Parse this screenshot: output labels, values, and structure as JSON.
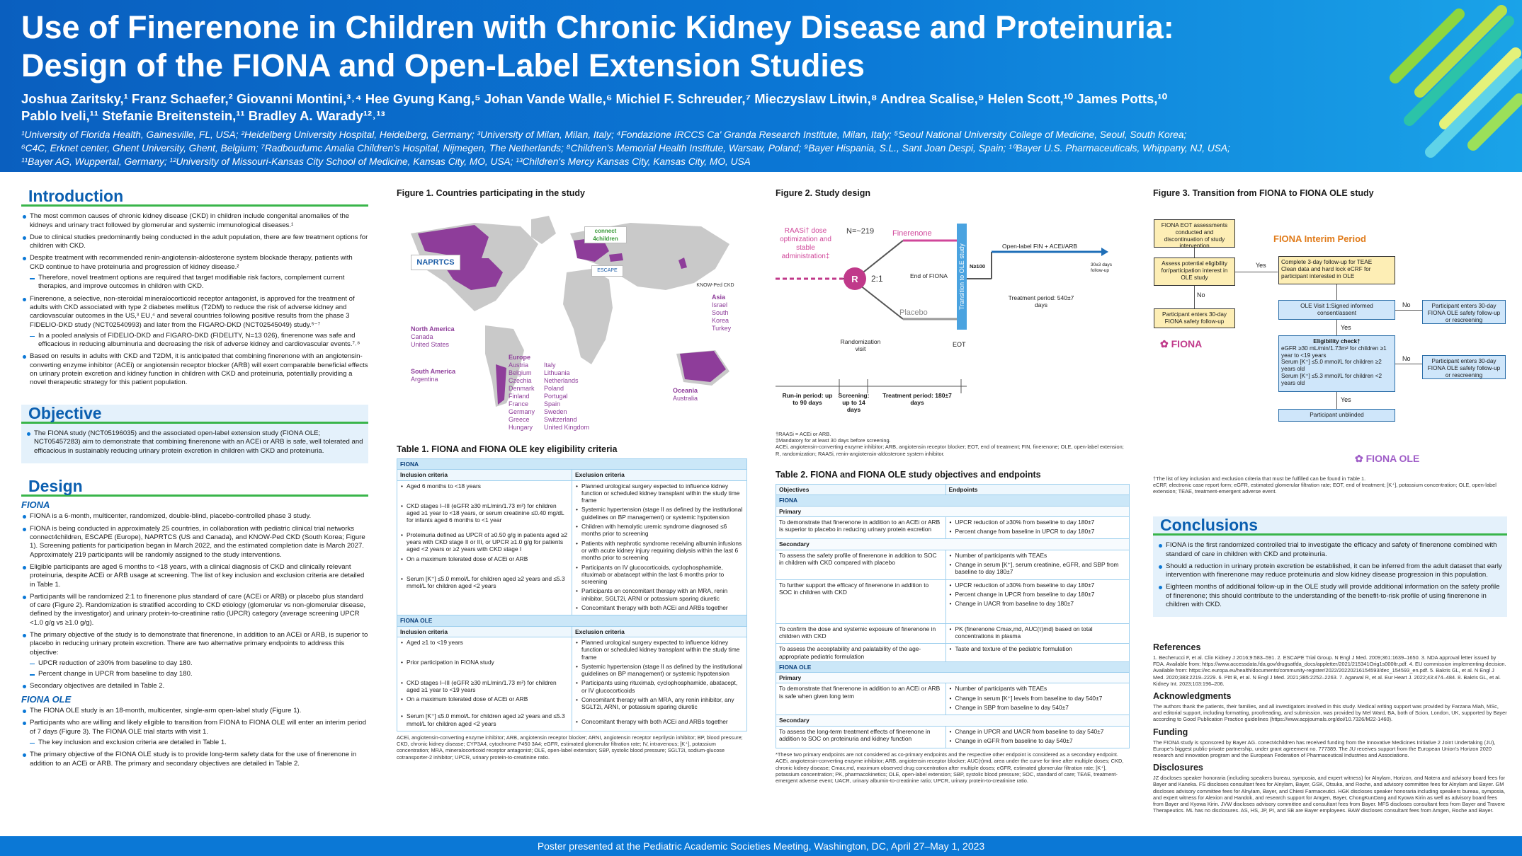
{
  "header": {
    "title_line1": "Use of Finerenone in Children with Chronic Kidney Disease and Proteinuria:",
    "title_line2": "Design of the FIONA and Open-Label Extension Studies",
    "authors_line1": "Joshua Zaritsky,¹ Franz Schaefer,² Giovanni Montini,³˒⁴ Hee Gyung Kang,⁵ Johan Vande Walle,⁶ Michiel F. Schreuder,⁷ Mieczyslaw Litwin,⁸ Andrea Scalise,⁹ Helen Scott,¹⁰ James Potts,¹⁰",
    "authors_line2": "Pablo Iveli,¹¹ Stefanie Breitenstein,¹¹ Bradley A. Warady¹²˒¹³",
    "affil_line1": "¹University of Florida Health, Gainesville, FL, USA; ²Heidelberg University Hospital, Heidelberg, Germany; ³University of Milan, Milan, Italy; ⁴Fondazione IRCCS Ca' Granda Research Institute, Milan, Italy; ⁵Seoul National University College of Medicine, Seoul, South Korea;",
    "affil_line2": "⁶C4C, Erknet center, Ghent University, Ghent, Belgium; ⁷Radboudumc Amalia Children's Hospital, Nijmegen, The Netherlands; ⁸Children's Memorial Health Institute, Warsaw, Poland; ⁹Bayer Hispania, S.L., Sant Joan Despi, Spain; ¹⁰Bayer U.S. Pharmaceuticals, Whippany, NJ, USA;",
    "affil_line3": "¹¹Bayer AG, Wuppertal, Germany; ¹²University of Missouri-Kansas City School of Medicine, Kansas City, MO, USA; ¹³Children's Mercy Kansas City, Kansas City, MO, USA"
  },
  "intro": {
    "heading": "Introduction",
    "b1": "The most common causes of chronic kidney disease (CKD) in children include congenital anomalies of the kidneys and urinary tract followed by glomerular and systemic immunological diseases.¹",
    "b2": "Due to clinical studies predominantly being conducted in the adult population, there are few treatment options for children with CKD.",
    "b3": "Despite treatment with recommended renin-angiotensin-aldosterone system blockade therapy, patients with CKD continue to have proteinuria and progression of kidney disease.²",
    "b3s": "Therefore, novel treatment options are required that target modifiable risk factors, complement current therapies, and improve outcomes in children with CKD.",
    "b4": "Finerenone, a selective, non-steroidal mineralocorticoid receptor antagonist, is approved for the treatment of adults with CKD associated with type 2 diabetes mellitus (T2DM) to reduce the risk of adverse kidney and cardiovascular outcomes in the US,³ EU,⁴ and several countries following positive results from the phase 3 FIDELIO-DKD study (NCT02540993) and later from the FIGARO-DKD (NCT02545049) study.⁵⁻⁷",
    "b4s": "In a pooled analysis of FIDELIO-DKD and FIGARO-DKD (FIDELITY, N=13 026), finerenone was safe and efficacious in reducing albuminuria and decreasing the risk of adverse kidney and cardiovascular events.⁷˒⁸",
    "b5": "Based on results in adults with CKD and T2DM, it is anticipated that combining finerenone with an angiotensin-converting enzyme inhibitor (ACEi) or angiotensin receptor blocker (ARB) will exert comparable beneficial effects on urinary protein excretion and kidney function in children with CKD and proteinuria, potentially providing a novel therapeutic strategy for this patient population."
  },
  "objective": {
    "heading": "Objective",
    "b1": "The FIONA study (NCT05196035) and the associated open-label extension study (FIONA OLE; NCT05457283) aim to demonstrate that combining finerenone with an ACEi or ARB is safe, well tolerated and efficacious in sustainably reducing urinary protein excretion in children with CKD and proteinuria."
  },
  "design": {
    "heading": "Design",
    "fiona_sub": "FIONA",
    "f1": "FIONA is a 6-month, multicenter, randomized, double-blind, placebo-controlled phase 3 study.",
    "f2": "FIONA is being conducted in approximately 25 countries, in collaboration with pediatric clinical trial networks connect4children, ESCAPE (Europe), NAPRTCS (US and Canada), and KNOW-Ped CKD (South Korea; Figure 1). Screening patients for participation began in March 2022, and the estimated completion date is March 2027. Approximately 219 participants will be randomly assigned to the study interventions.",
    "f3": "Eligible participants are aged 6 months to <18 years, with a clinical diagnosis of CKD and clinically relevant proteinuria, despite ACEi or ARB usage at screening. The list of key inclusion and exclusion criteria are detailed in Table 1.",
    "f4": "Participants will be randomized 2:1 to finerenone plus standard of care (ACEi or ARB) or placebo plus standard of care (Figure 2). Randomization is stratified according to CKD etiology (glomerular vs non-glomerular disease, defined by the investigator) and urinary protein-to-creatinine ratio (UPCR) category (average screening UPCR <1.0 g/g vs ≥1.0 g/g).",
    "f5": "The primary objective of the study is to demonstrate that finerenone, in addition to an ACEi or ARB, is superior to placebo in reducing urinary protein excretion. There are two alternative primary endpoints to address this objective:",
    "f5a": "UPCR reduction of ≥30% from baseline to day 180.",
    "f5b": "Percent change in UPCR from baseline to day 180.",
    "f6": "Secondary objectives are detailed in Table 2.",
    "ole_sub": "FIONA OLE",
    "o1": "The FIONA OLE study is an 18-month, multicenter, single-arm open-label study (Figure 1).",
    "o2": "Participants who are willing and likely eligible to transition from FIONA to FIONA OLE will enter an interim period of 7 days (Figure 3). The FIONA OLE trial starts with visit 1.",
    "o2s": "The key inclusion and exclusion criteria are detailed in Table 1.",
    "o3": "The primary objective of the FIONA OLE study is to provide long-term safety data for the use of finerenone in addition to an ACEi or ARB. The primary and secondary objectives are detailed in Table 2."
  },
  "fig1": {
    "caption": "Figure 1. Countries participating in the study",
    "na_title": "North America",
    "na": "Canada\nUnited States",
    "sa_title": "South America",
    "sa": "Argentina",
    "eu_title": "Europe",
    "eu1": "Austria\nBelgium\nCzechia\nDenmark\nFinland\nFrance\nGermany\nGreece\nHungary",
    "eu2": "Italy\nLithuania\nNetherlands\nPoland\nPortugal\nSpain\nSweden\nSwitzerland\nUnited Kingdom",
    "as_title": "Asia",
    "as": "Israel\nSouth Korea\nTurkey",
    "oc_title": "Oceania",
    "oc": "Australia",
    "logo_naprtcs": "NAPRTCS",
    "logo_c4c": "connect 4children",
    "logo_escape": "ESCAPE",
    "logo_know": "KNOW-Ped CKD"
  },
  "table1": {
    "caption": "Table 1. FIONA and FIONA OLE key eligibility criteria",
    "fiona": "FIONA",
    "inc": "Inclusion criteria",
    "exc": "Exclusion criteria",
    "fi1": "Aged 6 months to <18 years",
    "fi2": "CKD stages I–III (eGFR ≥30 mL/min/1.73 m²) for children aged ≥1 year to <18 years, or serum creatinine ≤0.40 mg/dL for infants aged 6 months to <1 year",
    "fi3": "Proteinuria defined as UPCR of ≥0.50 g/g in patients aged ≥2 years with CKD stage II or III, or UPCR ≥1.0 g/g for patients aged <2 years or ≥2 years with CKD stage I",
    "fi4": "On a maximum tolerated dose of ACEi or ARB",
    "fi5": "Serum [K⁺] ≤5.0 mmol/L for children aged ≥2 years and ≤5.3 mmol/L for children aged <2 years",
    "fe1": "Planned urological surgery expected to influence kidney function or scheduled kidney transplant within the study time frame",
    "fe2": "Systemic hypertension (stage II as defined by the institutional guidelines on BP management) or systemic hypotension",
    "fe3": "Children with hemolytic uremic syndrome diagnosed ≤6 months prior to screening",
    "fe4": "Patients with nephrotic syndrome receiving albumin infusions or with acute kidney injury requiring dialysis within the last 6 months prior to screening",
    "fe5": "Participants on IV glucocorticoids, cyclophosphamide, rituximab or abatacept within the last 6 months prior to screening",
    "fe6": "Participants on concomitant therapy with an MRA, renin inhibitor, SGLT2i, ARNI or potassium sparing diuretic",
    "fe7": "Concomitant therapy with both ACEi and ARBs together",
    "ole": "FIONA OLE",
    "oi1": "Aged ≥1 to <19 years",
    "oi2": "Prior participation in FIONA study",
    "oi3": "CKD stages I–III (eGFR ≥30 mL/min/1.73 m²) for children aged ≥1 year to <19 years",
    "oi4": "On a maximum tolerated dose of ACEi or ARB",
    "oi5": "Serum [K⁺] ≤5.0 mmol/L for children aged ≥2 years and ≤5.3 mmol/L for children aged <2 years",
    "oe1": "Planned urological surgery expected to influence kidney function or scheduled kidney transplant within the study time frame",
    "oe2": "Systemic hypertension (stage II as defined by the institutional guidelines on BP management) or systemic hypotension",
    "oe3": "Participants using rituximab, cyclophosphamide, abatacept, or IV glucocorticoids",
    "oe4": "Concomitant therapy with an MRA, any renin inhibitor, any SGLT2i, ARNI, or potassium sparing diuretic",
    "oe5": "Concomitant therapy with both ACEi and ARBs together",
    "foot": "ACEi, angiotensin-converting enzyme inhibitor; ARB, angiotensin receptor blocker; ARNI, angiotensin receptor neprilysin inhibitor; BP, blood pressure; CKD, chronic kidney disease; CYP3A4, cytochrome P450 3A4; eGFR, estimated glomerular filtration rate; IV, intravenous; [K⁺], potassium concentration; MRA, mineralocorticoid receptor antagonist; OLE, open-label extension; SBP, systolic blood pressure; SGLT2i, sodium-glucose cotransporter-2 inhibitor; UPCR, urinary protein-to-creatinine ratio."
  },
  "fig2": {
    "caption": "Figure 2. Study design",
    "runin": "RAASi† dose optimization and stable administration‡",
    "n": "N=~219",
    "R": "R",
    "ratio": "2:1",
    "fin": "Finerenone",
    "pla": "Placebo",
    "eof": "End of FIONA",
    "trans": "Transition to OLE study",
    "n100": "N≥100",
    "olelbl": "Open-label FIN + ACEi/ARB",
    "followup": "30±3 days follow-up",
    "tp_ole": "Treatment period: 540±7 days",
    "randvisit": "Randomization visit",
    "eot": "EOT",
    "p1": "Run-in period: up to 90 days",
    "p2": "Screening: up to 14 days",
    "p3": "Treatment period: 180±7 days",
    "foot1": "†RAASi = ACEi or ARB.",
    "foot2": "‡Mandatory for at least 30 days before screening.",
    "foot3": "ACEi, angiotensin-converting enzyme inhibitor; ARB, angiotensin receptor blocker; EOT, end of treatment; FIN, finerenone; OLE, open-label extension; R, randomization; RAASi, renin-angiotensin-aldosterone system inhibitor."
  },
  "table2": {
    "caption": "Table 2. FIONA and FIONA OLE study objectives and endpoints",
    "obj": "Objectives",
    "end": "Endpoints",
    "fiona": "FIONA",
    "primary": "Primary",
    "secondary": "Secondary",
    "ole": "FIONA OLE",
    "p1o": "To demonstrate that finerenone in addition to an ACEi or ARB is superior to placebo in reducing urinary protein excretion",
    "p1e1": "UPCR reduction of ≥30% from baseline to day 180±7",
    "p1e2": "Percent change from baseline in UPCR to day 180±7",
    "s1o": "To assess the safety profile of finerenone in addition to SOC in children with CKD compared with placebo",
    "s1e1": "Number of participants with TEAEs",
    "s1e2": "Change in serum [K⁺], serum creatinine, eGFR, and SBP from baseline to day 180±7",
    "s2o": "To further support the efficacy of finerenone in addition to SOC in children with CKD",
    "s2e1": "UPCR reduction of ≥30% from baseline to day 180±7",
    "s2e2": "Percent change in UPCR from baseline to day 180±7",
    "s2e3": "Change in UACR from baseline to day 180±7",
    "s3o": "To confirm the dose and systemic exposure of finerenone in children with CKD",
    "s3e1": "PK (finerenone Cmax,md, AUC(τ)md) based on total concentrations in plasma",
    "s4o": "To assess the acceptability and palatability of the age-appropriate pediatric formulation",
    "s4e1": "Taste and texture of the pediatric formulation",
    "op1o": "To demonstrate that finerenone in addition to an ACEi or ARB is safe when given long term",
    "op1e1": "Number of participants with TEAEs",
    "op1e2": "Change in serum [K⁺] levels from baseline to day 540±7",
    "op1e3": "Change in SBP from baseline to day 540±7",
    "os1o": "To assess the long-term treatment effects of finerenone in addition to SOC on proteinuria and kidney function",
    "os1e1": "Change in UPCR and UACR from baseline to day 540±7",
    "os1e2": "Change in eGFR from baseline to day 540±7",
    "foot": "*These two primary endpoints are not considered as co-primary endpoints and the respective other endpoint is considered as a secondary endpoint. ACEi, angiotensin-converting enzyme inhibitor; ARB, angiotensin receptor blocker; AUC(τ)md, area under the curve for time after multiple doses; CKD, chronic kidney disease; Cmax,md, maximum observed drug concentration after multiple doses; eGFR, estimated glomerular filtration rate; [K⁺], potassium concentration; PK, pharmacokinetics; OLE, open-label extension; SBP, systolic blood pressure; SOC, standard of care; TEAE, treatment-emergent adverse event; UACR, urinary albumin-to-creatinine ratio; UPCR, urinary protein-to-creatinine ratio."
  },
  "fig3": {
    "caption": "Figure 3. Transition from FIONA to FIONA OLE study",
    "eot": "FIONA EOT assessments conducted and discontinuation of study intervention",
    "assess": "Assess potential eligibility for/participation interest in OLE study",
    "yes": "Yes",
    "no": "No",
    "interim": "FIONA Interim Period",
    "i1": "Complete 3-day follow-up for TEAE",
    "i2": "Clean data and hard lock eCRF for participant interested in OLE",
    "safety": "Participant enters 30-day FIONA safety follow-up",
    "visit1": "OLE Visit 1:Signed informed consent/assent",
    "ole_follow1": "Participant enters 30-day FIONA OLE safety follow-up or rescreening",
    "elig": "Eligibility check†",
    "e1": "eGFR ≥30 mL/min/1.73m² for children ≥1 year to <19 years",
    "e2": "Serum [K⁺] ≤5.0 mmol/L for children ≥2 years old",
    "e3": "Serum [K⁺] ≤5.3 mmol/L for children <2 years old",
    "ole_follow2": "Participant enters 30-day FIONA OLE safety follow-up or rescreening",
    "unblind": "Participant unblinded",
    "logo_fiona": "FIONA",
    "logo_ole": "FIONA OLE",
    "foot1": "†The list of key inclusion and exclusion criteria that must be fulfilled can be found in Table 1.",
    "foot2": "eCRF, electronic case report form; eGFR, estimated glomerular filtration rate; EOT, end of treatment; [K⁺], potassium concentration; OLE, open-label extension; TEAE, treatment-emergent adverse event."
  },
  "conclusions": {
    "heading": "Conclusions",
    "c1": "FIONA is the first randomized controlled trial to investigate the efficacy and safety of finerenone combined with standard of care in children with CKD and proteinuria.",
    "c2": "Should a reduction in urinary protein excretion be established, it can be inferred from the adult dataset that early intervention with finerenone may reduce proteinuria and slow kidney disease progression in this population.",
    "c3": "Eighteen months of additional follow-up in the OLE study will provide additional information on the safety profile of finerenone; this should contribute to the understanding of the benefit-to-risk profile of using finerenone in children with CKD."
  },
  "refs": {
    "heading": "References",
    "text": "1. Becherucci F, et al. Clin Kidney J 2016;9:583–591. 2. ESCAPE Trial Group. N Engl J Med. 2009;361:1639–1650. 3. NDA approval letter issued by FDA. Available from: https://www.accessdata.fda.gov/drugsatfda_docs/appletter/2021/215341Orig1s000ltr.pdf. 4. EU commission implementing decision. Available from: https://ec.europa.eu/health/documents/community-register/2022/20220216154593/dec_154593_en.pdf. 5. Bakris GL, et al. N Engl J Med. 2020;383:2219–2229. 6. Pitt B, et al. N Engl J Med. 2021;385:2252–2263. 7. Agarwal R, et al. Eur Heart J. 2022;43:474–484. 8. Bakris GL, et al. Kidney Int. 2023;103:196–206.",
    "ack_h": "Acknowledgments",
    "ack": "The authors thank the patients, their families, and all investigators involved in this study. Medical writing support was provided by Farzana Miah, MSc, and editorial support, including formatting, proofreading, and submission, was provided by Mel Ward, BA, both of Scion, London, UK, supported by Bayer according to Good Publication Practice guidelines (https://www.acpjournals.org/doi/10.7326/M22-1460).",
    "fund_h": "Funding",
    "fund": "The FIONA study is sponsored by Bayer AG. conect4children has received funding from the Innovative Medicines Initiative 2 Joint Undertaking (JU), Europe's biggest public-private partnership, under grant agreement no. 777389. The JU receives support from the European Union's Horizon 2020 research and innovation program and the European Federation of Pharmaceutical Industries and Associations.",
    "disc_h": "Disclosures",
    "disc": "JZ discloses speaker honoraria (including speakers bureau, symposia, and expert witness) for Alnylam, Horizon, and Natera and advisory board fees for Bayer and Kaneka. FS discloses consultant fees for Alnylam, Bayer, GSK, Otsuka, and Roche, and advisory committee fees for Alnylam and Bayer. GM discloses advisory committee fees for Alnylam, Bayer, and Chiesi Farmaceutici. HGK discloses speaker honoraria including speakers bureau, symposia, and expert witness for Alexion and Handok, and research support for Amgen, Bayer, ChongKunDang and Kyowa Kirin as well as advisory board fees from Bayer and Kyowa Kirin. JVW discloses advisory committee and consultant fees from Bayer. MFS discloses consultant fees from Bayer and Travere Therapeutics. ML has no disclosures. AS, HS, JP, PI, and SB are Bayer employees. BAW discloses consultant fees from Amgen, Roche and Bayer."
  },
  "footer": {
    "text": "Poster presented at the Pediatric Academic Societies Meeting, Washington, DC, April 27–May 1, 2023"
  },
  "colors": {
    "header": "#0b78d6",
    "accent": "#39b54a",
    "heading": "#0b5fb0",
    "map": "#8e3d9a"
  }
}
